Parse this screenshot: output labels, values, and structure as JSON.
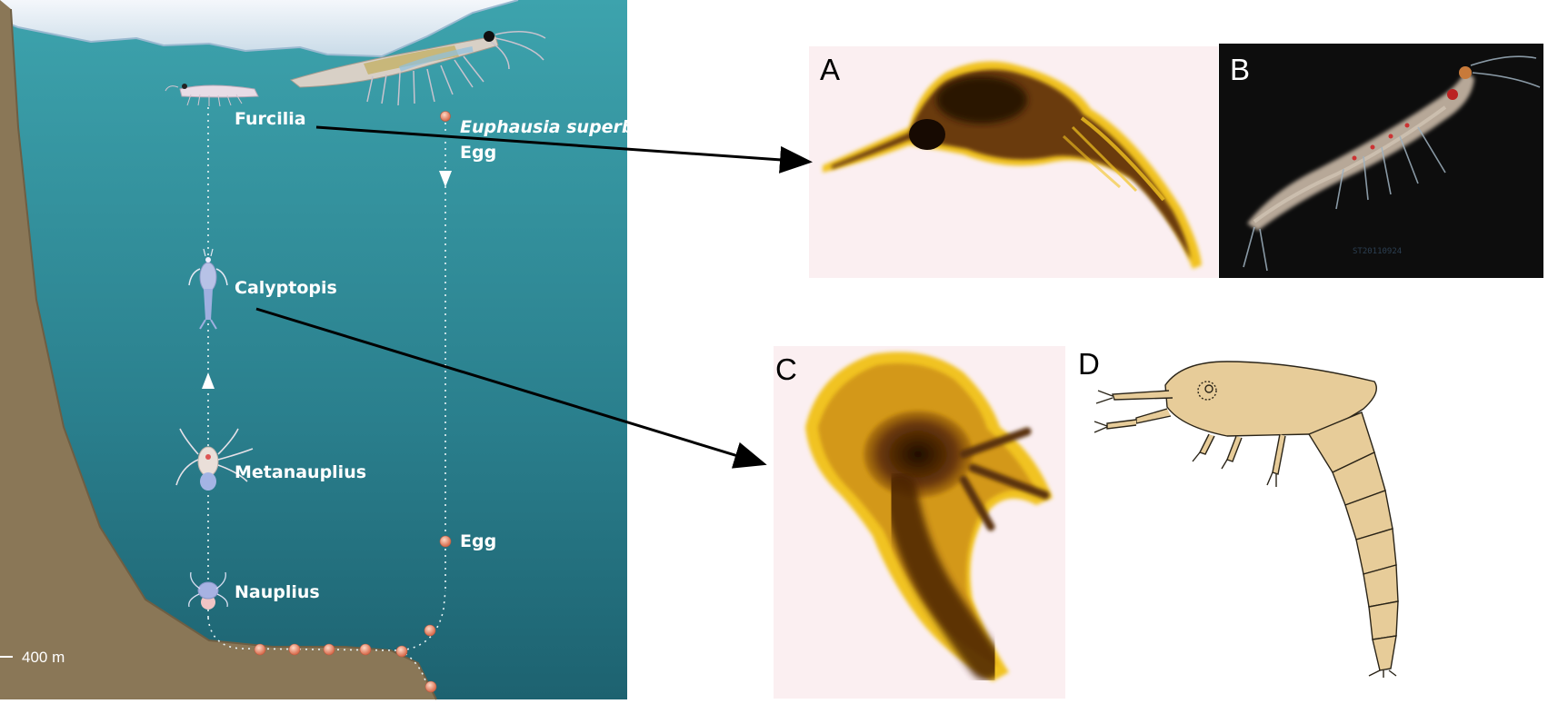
{
  "diagram": {
    "stages": {
      "furcilia": "Furcilia",
      "calyptopis": "Calyptopis",
      "metanauplius": "Metanauplius",
      "nauplius": "Nauplius"
    },
    "species": "Euphausia superba",
    "egg_top": "Egg",
    "egg_deep": "Egg",
    "depth": "400 m"
  },
  "panels": {
    "a": {
      "letter": "A"
    },
    "b": {
      "letter": "B",
      "watermark": "ST20110924"
    },
    "c": {
      "letter": "C"
    },
    "d": {
      "letter": "D"
    }
  },
  "colors": {
    "ocean_top": "#3a9aa6",
    "ocean_bottom": "#1f6876",
    "seafloor": "#8a7757",
    "egg": "#e58a6c",
    "micrograph_bg": "#fbeff1",
    "larva_dark": "#2a1404",
    "larva_light": "#f1c321",
    "drawing_body": "#e7cc99",
    "photo_bg": "#0d0d0d"
  },
  "icons": [
    "krill-adult-icon",
    "krill-juvenile-icon",
    "calyptopis-larva-icon",
    "metanauplius-larva-icon",
    "nauplius-larva-icon",
    "egg-icon",
    "arrow-icon"
  ]
}
